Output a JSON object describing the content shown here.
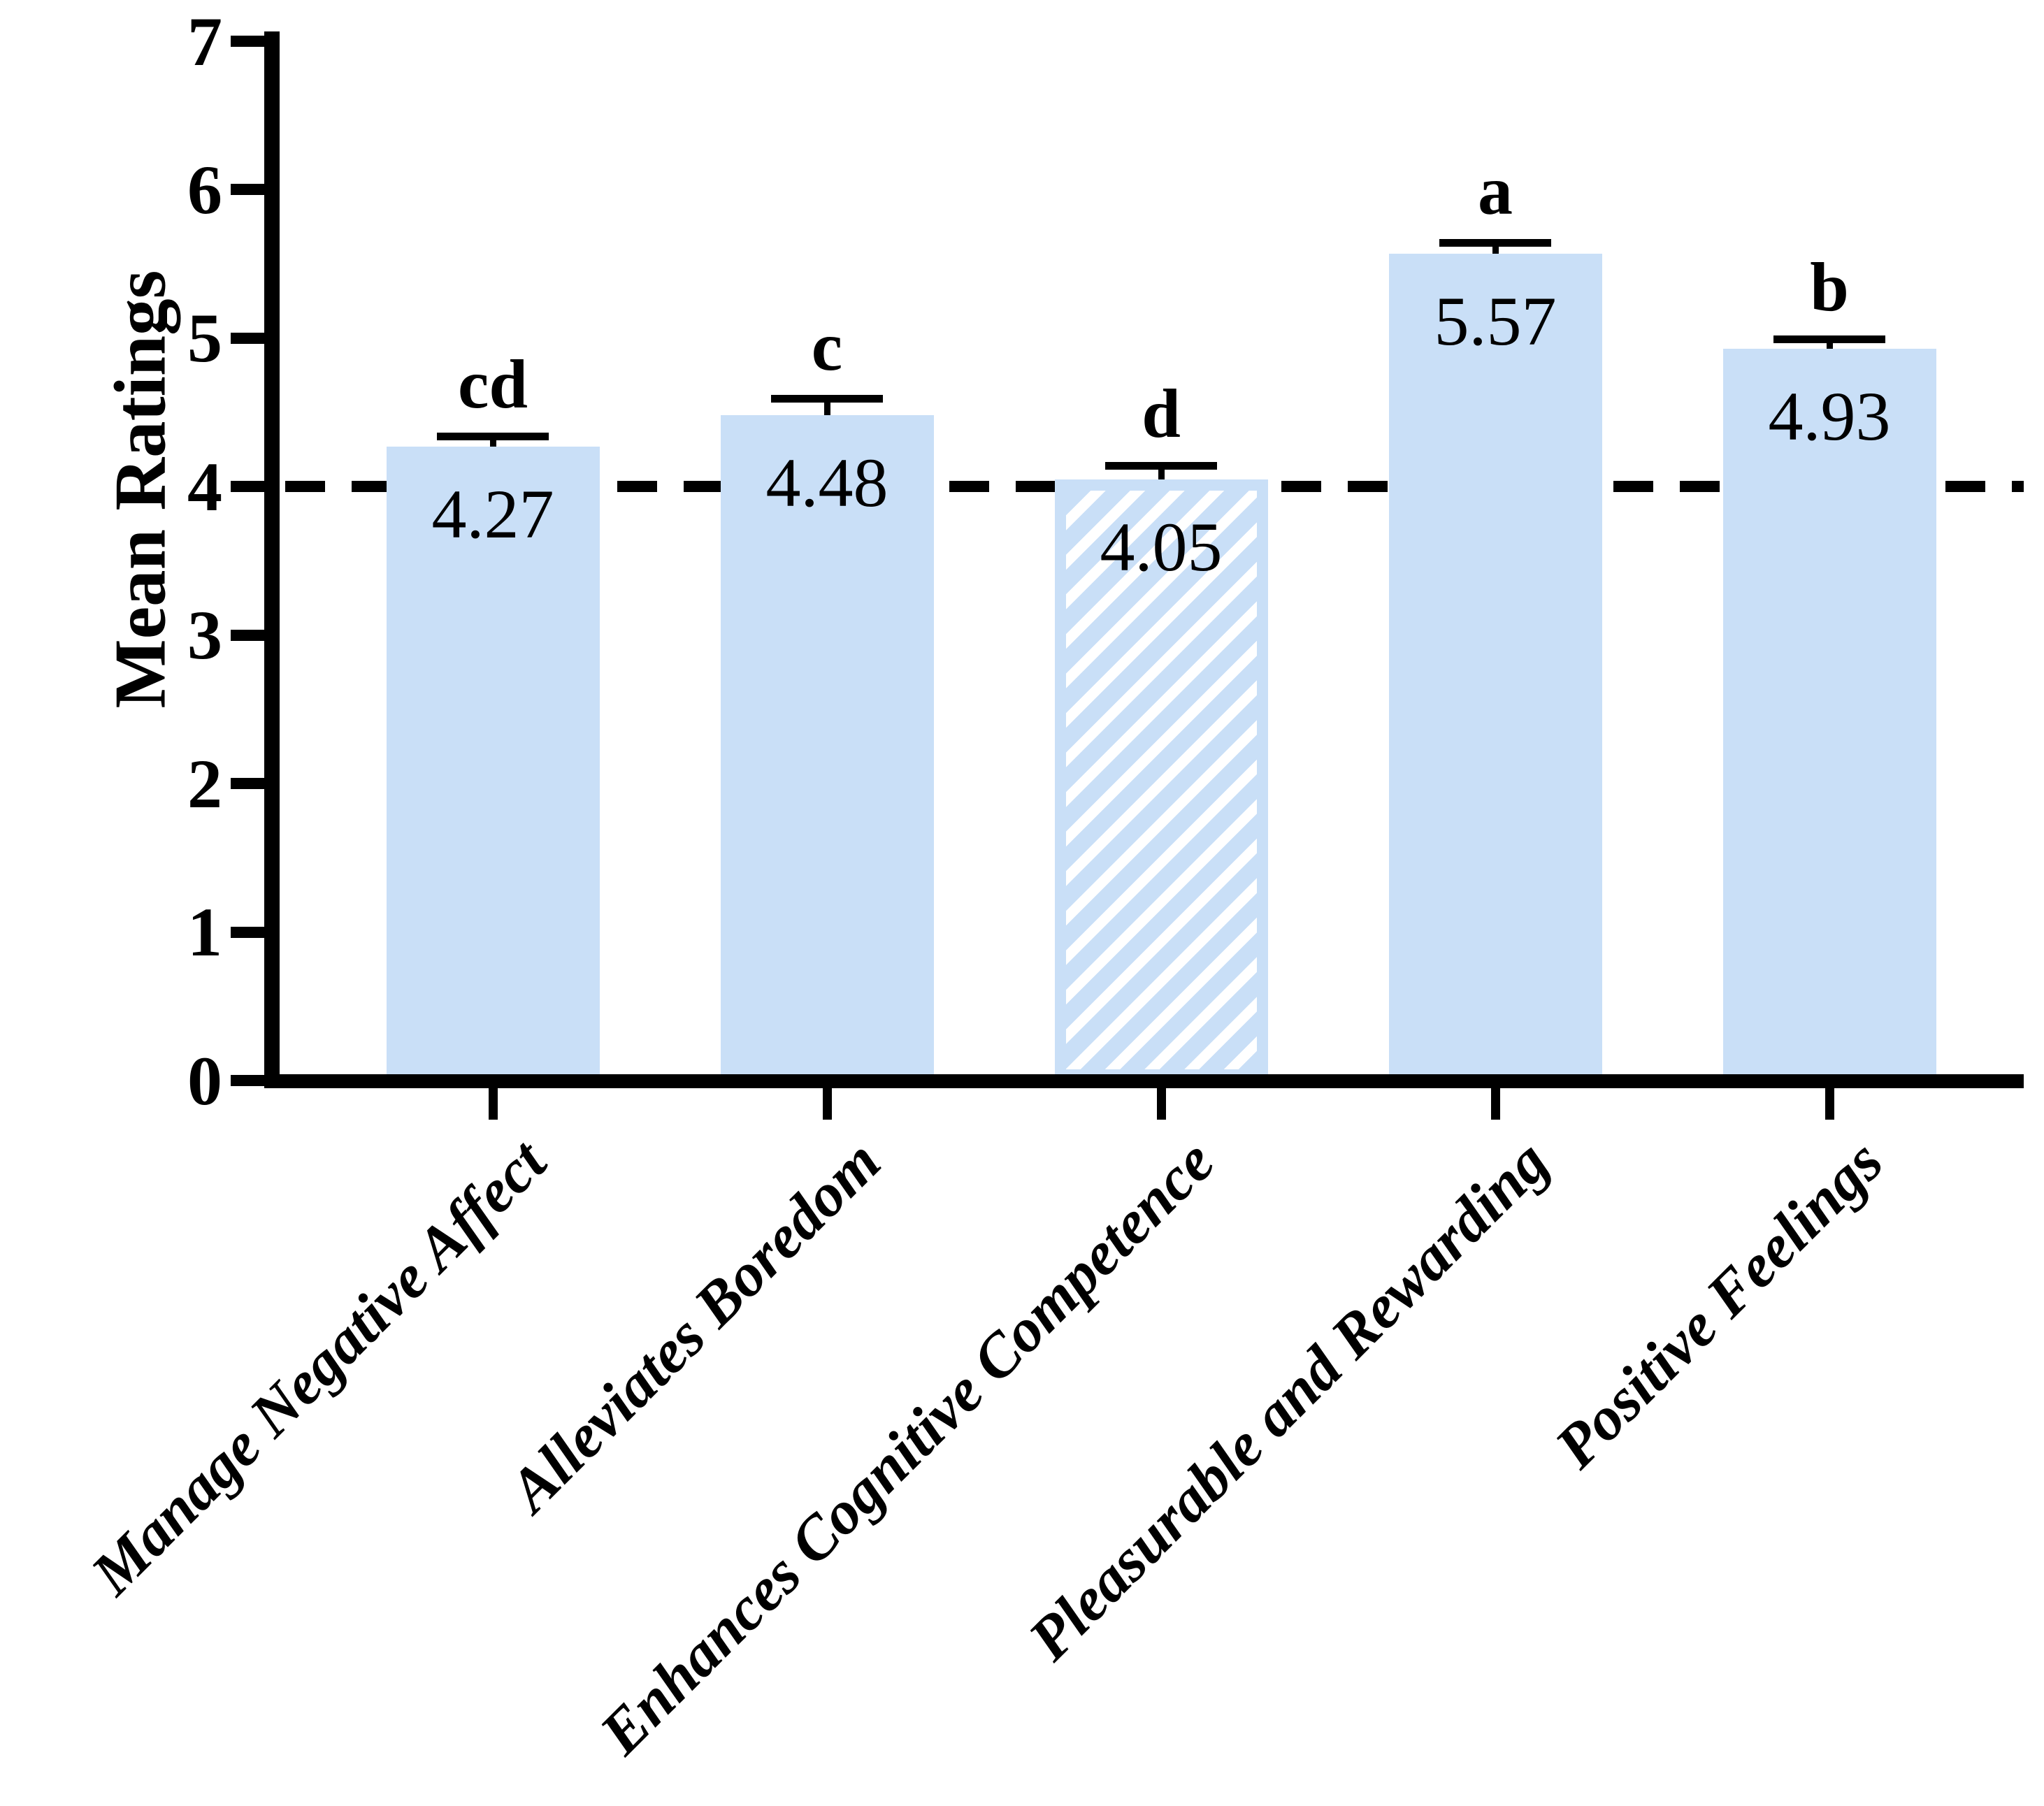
{
  "chart_data": {
    "type": "bar",
    "title": "",
    "ylabel": "Mean Ratings",
    "xlabel": "",
    "ylim": [
      0,
      7
    ],
    "yticks": [
      "0",
      "1",
      "2",
      "3",
      "4",
      "5",
      "6",
      "7"
    ],
    "reference_line_y": 4,
    "grid": false,
    "legend": false,
    "bar_color": "#C9DFF7",
    "hatch_style": "diagonal-stripes",
    "axis_color": "#000000",
    "categories": [
      "Manage Negative Affect",
      "Alleviates Boredom",
      "Enhances Cognitive Competence",
      "Pleasurable and Rewarding",
      "Positive Feelings"
    ],
    "values": [
      4.27,
      4.48,
      4.05,
      5.57,
      4.93
    ],
    "bars": [
      {
        "category": "Manage Negative Affect",
        "value": 4.27,
        "value_label": "4.27",
        "se_upper": 0.07,
        "letter": "cd",
        "hatched": false
      },
      {
        "category": "Alleviates Boredom",
        "value": 4.48,
        "value_label": "4.48",
        "se_upper": 0.11,
        "letter": "c",
        "hatched": false
      },
      {
        "category": "Enhances Cognitive Competence",
        "value": 4.05,
        "value_label": "4.05",
        "se_upper": 0.09,
        "letter": "d",
        "hatched": true
      },
      {
        "category": "Pleasurable and Rewarding",
        "value": 5.57,
        "value_label": "5.57",
        "se_upper": 0.07,
        "letter": "a",
        "hatched": false
      },
      {
        "category": "Positive Feelings",
        "value": 4.93,
        "value_label": "4.93",
        "se_upper": 0.06,
        "letter": "b",
        "hatched": false
      }
    ]
  }
}
